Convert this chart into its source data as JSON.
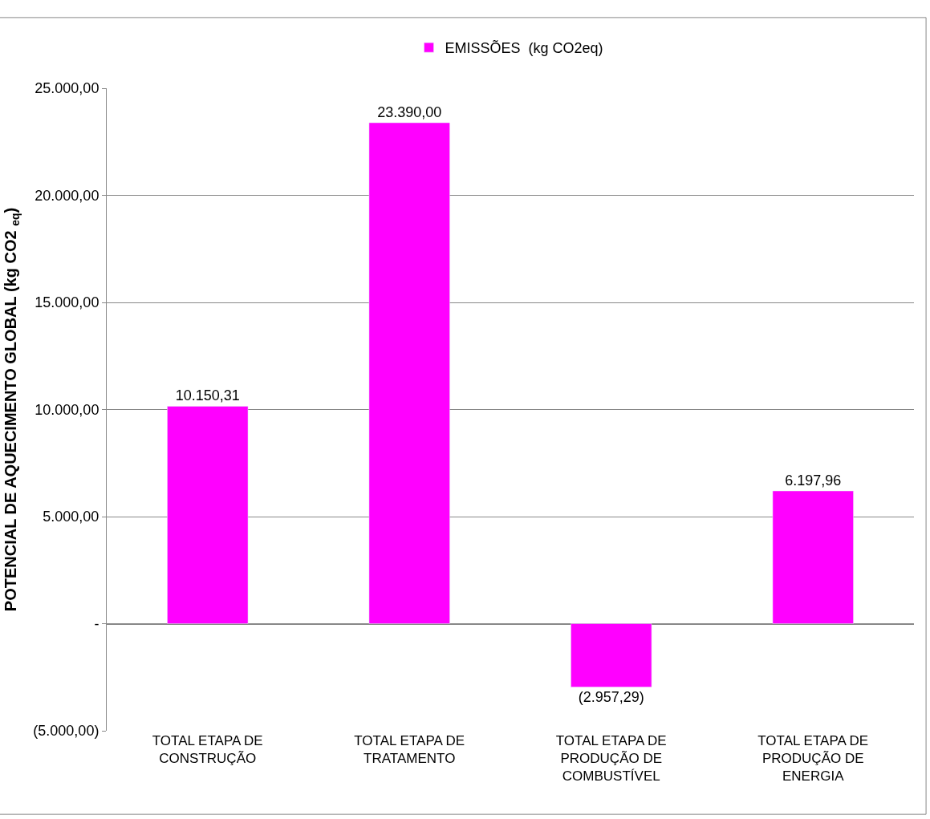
{
  "chart_data": {
    "type": "bar",
    "categories": [
      "TOTAL ETAPA DE\nCONSTRUÇÃO",
      "TOTAL ETAPA DE\nTRATAMENTO",
      "TOTAL ETAPA DE\nPRODUÇÃO DE\nCOMBUSTÍVEL",
      "TOTAL ETAPA DE\nPRODUÇÃO DE\nENERGIA"
    ],
    "series": [
      {
        "name": "EMISSÕES  (kg CO2eq)",
        "color": "#ff00ff",
        "values": [
          10150.31,
          23390.0,
          -2957.29,
          6197.96
        ],
        "value_labels": [
          "10.150,31",
          "23.390,00",
          "(2.957,29)",
          "6.197,96"
        ]
      }
    ],
    "ylabel": "POTENCIAL DE AQUECIMENTO GLOBAL (kg CO2 $_{eq}$)",
    "ylim": [
      -5000,
      25000
    ],
    "yticks": [
      {
        "value": -5000,
        "label": "(5.000,00)"
      },
      {
        "value": 0,
        "label": "-"
      },
      {
        "value": 5000,
        "label": "5.000,00"
      },
      {
        "value": 10000,
        "label": "10.000,00"
      },
      {
        "value": 15000,
        "label": "15.000,00"
      },
      {
        "value": 20000,
        "label": "20.000,00"
      },
      {
        "value": 25000,
        "label": "25.000,00"
      }
    ],
    "grid": "y",
    "legend": "top"
  }
}
